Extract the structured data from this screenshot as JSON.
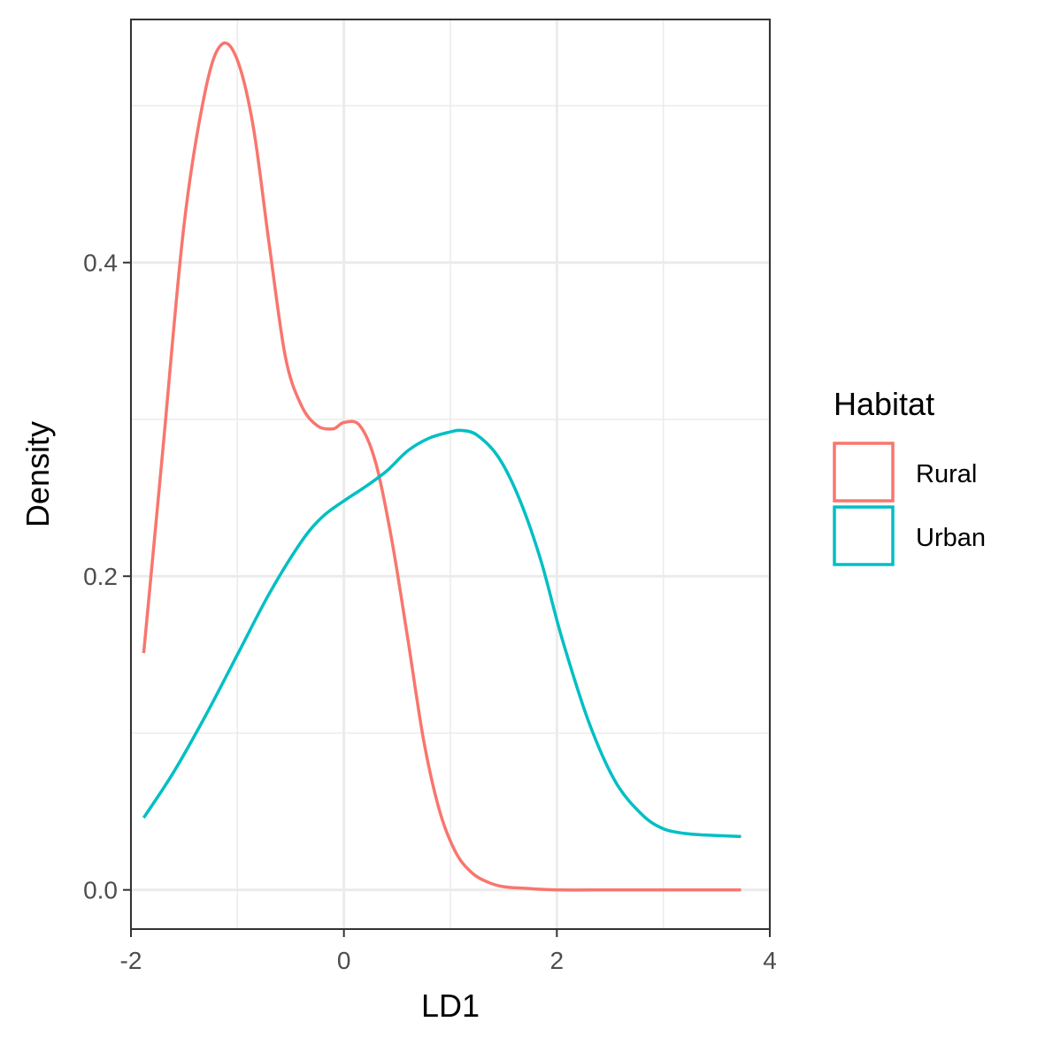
{
  "chart_data": {
    "type": "line",
    "title": "",
    "xlabel": "LD1",
    "ylabel": "Density",
    "xlim": [
      -2.0,
      4.0
    ],
    "ylim": [
      -0.025,
      0.555
    ],
    "x_ticks": [
      -2,
      0,
      2,
      4
    ],
    "x_tick_labels": [
      "-2",
      "0",
      "2",
      "4"
    ],
    "y_ticks": [
      0.0,
      0.2,
      0.4
    ],
    "y_tick_labels": [
      "0.0",
      "0.2",
      "0.4"
    ],
    "grid": true,
    "legend": {
      "title": "Habitat",
      "position": "right"
    },
    "series": [
      {
        "name": "Rural",
        "color": "#F8766D",
        "x": [
          -1.88,
          -1.7,
          -1.5,
          -1.3,
          -1.15,
          -1.0,
          -0.85,
          -0.7,
          -0.55,
          -0.4,
          -0.25,
          -0.1,
          0.0,
          0.15,
          0.3,
          0.45,
          0.6,
          0.75,
          0.9,
          1.05,
          1.2,
          1.35,
          1.5,
          1.7,
          2.0,
          2.5,
          3.0,
          3.5,
          3.73
        ],
        "y": [
          0.151,
          0.281,
          0.425,
          0.51,
          0.539,
          0.529,
          0.486,
          0.411,
          0.34,
          0.309,
          0.296,
          0.294,
          0.298,
          0.296,
          0.272,
          0.223,
          0.16,
          0.095,
          0.05,
          0.024,
          0.011,
          0.005,
          0.002,
          0.001,
          0.0,
          0.0,
          0.0,
          0.0,
          0.0
        ]
      },
      {
        "name": "Urban",
        "color": "#00BFC4",
        "x": [
          -1.88,
          -1.6,
          -1.3,
          -1.0,
          -0.7,
          -0.4,
          -0.2,
          0.0,
          0.2,
          0.4,
          0.6,
          0.8,
          1.0,
          1.1,
          1.25,
          1.45,
          1.65,
          1.85,
          2.05,
          2.3,
          2.55,
          2.8,
          3.0,
          3.2,
          3.4,
          3.73
        ],
        "y": [
          0.046,
          0.075,
          0.111,
          0.15,
          0.189,
          0.222,
          0.238,
          0.248,
          0.257,
          0.267,
          0.28,
          0.288,
          0.292,
          0.293,
          0.29,
          0.276,
          0.249,
          0.21,
          0.16,
          0.107,
          0.069,
          0.048,
          0.039,
          0.036,
          0.035,
          0.034
        ]
      }
    ]
  }
}
